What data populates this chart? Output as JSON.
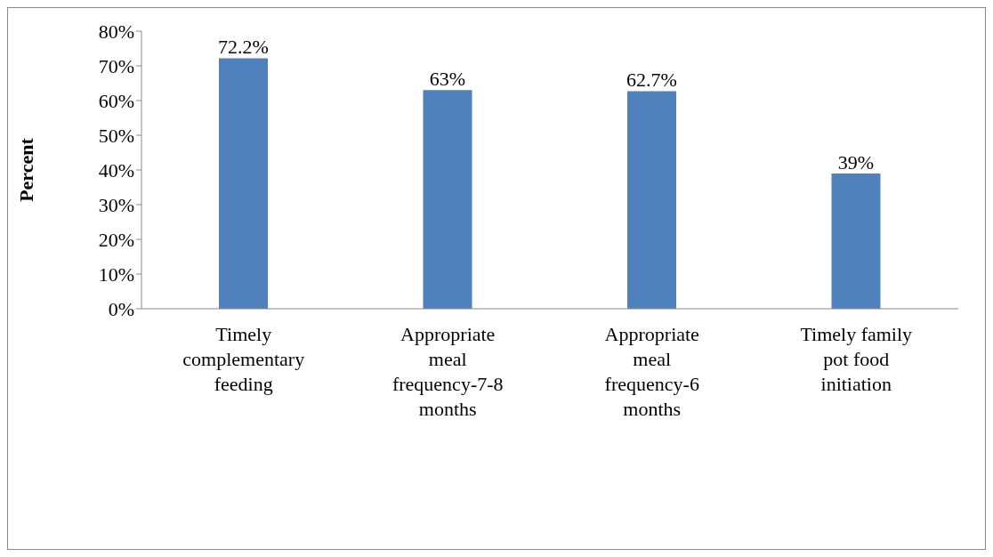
{
  "chart_data": {
    "type": "bar",
    "ylabel": "Percent",
    "categories": [
      "Timely complementary feeding",
      "Appropriate meal frequency-7-8 months",
      "Appropriate meal frequency-6 months",
      "Timely family pot food initiation"
    ],
    "values": [
      72.2,
      63,
      62.7,
      39
    ],
    "value_labels": [
      "72.2%",
      "63%",
      "62.7%",
      "39%"
    ],
    "color": "#4f81bd",
    "ylim": [
      0,
      80
    ],
    "yticks": [
      {
        "value": 0,
        "label": "0%"
      },
      {
        "value": 10,
        "label": "10%"
      },
      {
        "value": 20,
        "label": "20%"
      },
      {
        "value": 30,
        "label": "30%"
      },
      {
        "value": 40,
        "label": "40%"
      },
      {
        "value": 50,
        "label": "50%"
      },
      {
        "value": 60,
        "label": "60%"
      },
      {
        "value": 70,
        "label": "70%"
      },
      {
        "value": 80,
        "label": "80%"
      }
    ],
    "grid": false,
    "legend": false
  }
}
